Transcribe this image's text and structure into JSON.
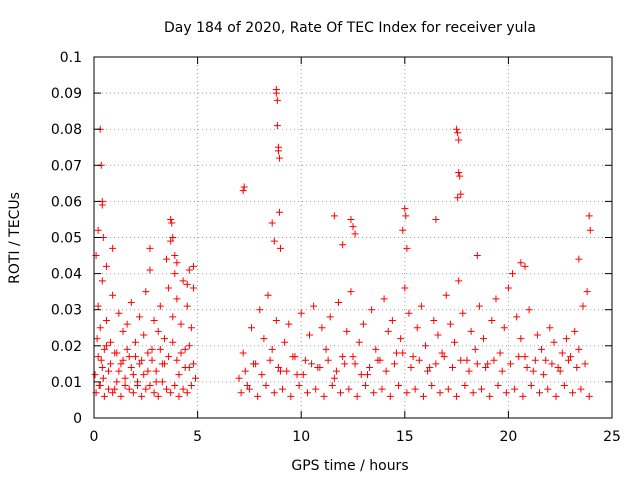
{
  "chart_data": {
    "type": "scatter",
    "title": "Day 184 of 2020, Rate Of TEC Index for receiver yula",
    "xlabel": "GPS time / hours",
    "ylabel": "ROTI / TECUs",
    "xlim": [
      0,
      25
    ],
    "ylim": [
      0,
      0.1
    ],
    "x_ticks": [
      0,
      5,
      10,
      15,
      20,
      25
    ],
    "x_tick_labels": [
      "0",
      "5",
      "10",
      "15",
      "20",
      "25"
    ],
    "y_ticks": [
      0,
      0.01,
      0.02,
      0.03,
      0.04,
      0.05,
      0.06,
      0.07,
      0.08,
      0.09,
      0.1
    ],
    "y_tick_labels": [
      "0",
      "0.01",
      "0.02",
      "0.03",
      "0.04",
      "0.05",
      "0.06",
      "0.07",
      "0.08",
      "0.09",
      "0.1"
    ],
    "grid": true,
    "marker": "+",
    "color": "#ff0000",
    "series": [
      {
        "x": [
          0.05,
          0.1,
          0.15,
          0.2,
          0.25,
          0.3,
          0.35,
          0.4,
          0.45,
          0.5,
          0.6,
          0.7,
          0.8,
          0.9,
          1.0,
          1.1,
          1.2,
          1.3,
          1.4,
          1.5,
          1.6,
          1.7,
          1.8,
          1.9,
          2.0,
          2.1,
          2.2,
          2.3,
          2.4,
          2.5,
          2.6,
          2.7,
          2.8,
          2.9,
          3.0,
          3.1,
          3.2,
          3.3,
          3.4,
          3.5,
          3.6,
          3.7,
          3.8,
          3.9,
          4.0,
          4.1,
          4.2,
          4.3,
          4.4,
          4.5,
          4.6,
          4.7,
          4.8,
          4.9,
          0.1,
          0.3,
          0.5,
          0.7,
          0.9,
          1.1,
          1.3,
          1.5,
          1.7,
          1.9,
          2.1,
          2.3,
          2.5,
          2.7,
          2.9,
          3.1,
          3.3,
          3.5,
          3.7,
          3.9,
          4.1,
          4.3,
          4.5,
          4.7,
          0.2,
          0.4,
          0.6,
          0.8,
          1.0,
          1.2,
          1.4,
          1.6,
          1.8,
          2.0,
          2.2,
          2.4,
          2.6,
          2.8,
          3.0,
          3.2,
          3.4,
          3.6,
          3.8,
          4.0,
          4.2,
          4.4,
          4.6,
          4.8,
          0.3,
          0.35,
          0.4,
          0.4,
          0.45,
          0.2,
          0.6,
          0.9,
          2.7,
          3.7,
          3.75,
          3.8,
          3.9,
          4.0,
          4.5,
          4.6,
          4.8,
          7.0,
          7.2,
          7.4,
          7.6,
          7.8,
          8.0,
          8.2,
          8.4,
          8.6,
          8.8,
          9.0,
          9.2,
          9.4,
          9.6,
          9.8,
          10.0,
          10.2,
          10.4,
          10.6,
          10.8,
          11.0,
          11.2,
          11.4,
          11.6,
          11.8,
          12.0,
          12.2,
          12.4,
          12.6,
          12.8,
          13.0,
          13.2,
          13.4,
          13.6,
          13.8,
          14.0,
          14.2,
          14.4,
          14.6,
          14.8,
          15.0,
          15.2,
          15.4,
          15.6,
          15.8,
          16.0,
          16.2,
          16.4,
          16.6,
          16.8,
          17.0,
          17.2,
          17.4,
          17.6,
          17.8,
          18.0,
          18.2,
          18.4,
          18.6,
          18.8,
          19.0,
          19.2,
          19.4,
          19.6,
          19.8,
          20.0,
          20.2,
          20.4,
          20.6,
          20.8,
          21.0,
          21.2,
          21.4,
          21.6,
          21.8,
          22.0,
          22.2,
          22.4,
          22.6,
          22.8,
          23.0,
          23.2,
          23.4,
          23.6,
          23.8,
          7.1,
          7.5,
          7.9,
          8.3,
          8.7,
          9.1,
          9.5,
          9.9,
          10.3,
          10.7,
          11.1,
          11.5,
          11.9,
          12.3,
          12.7,
          13.1,
          13.5,
          13.9,
          14.3,
          14.7,
          15.1,
          15.5,
          15.9,
          16.3,
          16.7,
          17.1,
          17.5,
          17.9,
          18.3,
          18.7,
          19.1,
          19.5,
          19.9,
          20.3,
          20.7,
          21.1,
          21.5,
          21.9,
          22.3,
          22.7,
          23.1,
          23.5,
          23.9,
          7.3,
          7.7,
          8.1,
          8.5,
          8.9,
          9.3,
          9.7,
          10.1,
          10.5,
          10.9,
          11.3,
          11.7,
          12.1,
          12.5,
          12.9,
          13.3,
          13.7,
          14.1,
          14.5,
          14.9,
          15.3,
          15.7,
          16.1,
          16.5,
          16.9,
          17.3,
          17.7,
          18.1,
          18.5,
          18.9,
          19.3,
          19.7,
          20.1,
          20.5,
          20.9,
          21.3,
          21.7,
          22.1,
          22.5,
          22.9,
          23.3,
          23.7,
          7.2,
          7.25,
          8.6,
          8.7,
          8.8,
          8.8,
          8.85,
          8.85,
          8.9,
          8.9,
          8.95,
          8.95,
          9.0,
          11.6,
          12.0,
          12.4,
          12.5,
          12.6,
          14.9,
          15.0,
          15.05,
          15.1,
          16.5,
          17.5,
          17.55,
          17.6,
          17.6,
          17.65,
          17.7,
          17.55,
          18.5,
          20.6,
          20.8,
          23.4,
          23.9,
          23.95
        ],
        "y": [
          0.012,
          0.045,
          0.022,
          0.031,
          0.009,
          0.025,
          0.016,
          0.038,
          0.011,
          0.019,
          0.027,
          0.013,
          0.021,
          0.034,
          0.008,
          0.018,
          0.029,
          0.015,
          0.024,
          0.011,
          0.026,
          0.017,
          0.032,
          0.012,
          0.021,
          0.009,
          0.028,
          0.016,
          0.023,
          0.035,
          0.013,
          0.041,
          0.019,
          0.027,
          0.01,
          0.024,
          0.031,
          0.015,
          0.022,
          0.044,
          0.036,
          0.049,
          0.028,
          0.04,
          0.033,
          0.012,
          0.026,
          0.038,
          0.019,
          0.031,
          0.014,
          0.025,
          0.036,
          0.011,
          0.007,
          0.009,
          0.006,
          0.008,
          0.007,
          0.01,
          0.006,
          0.009,
          0.008,
          0.007,
          0.01,
          0.006,
          0.008,
          0.009,
          0.007,
          0.006,
          0.01,
          0.008,
          0.007,
          0.009,
          0.006,
          0.008,
          0.007,
          0.009,
          0.017,
          0.014,
          0.02,
          0.015,
          0.018,
          0.013,
          0.016,
          0.019,
          0.014,
          0.017,
          0.015,
          0.012,
          0.018,
          0.016,
          0.013,
          0.019,
          0.015,
          0.017,
          0.021,
          0.016,
          0.018,
          0.014,
          0.02,
          0.015,
          0.08,
          0.07,
          0.06,
          0.059,
          0.05,
          0.052,
          0.042,
          0.047,
          0.047,
          0.055,
          0.054,
          0.05,
          0.045,
          0.043,
          0.037,
          0.041,
          0.042,
          0.011,
          0.018,
          0.009,
          0.025,
          0.015,
          0.03,
          0.022,
          0.034,
          0.019,
          0.027,
          0.013,
          0.021,
          0.026,
          0.017,
          0.012,
          0.029,
          0.016,
          0.023,
          0.031,
          0.014,
          0.025,
          0.019,
          0.028,
          0.011,
          0.032,
          0.017,
          0.024,
          0.035,
          0.015,
          0.021,
          0.026,
          0.012,
          0.03,
          0.019,
          0.016,
          0.033,
          0.024,
          0.027,
          0.018,
          0.022,
          0.036,
          0.029,
          0.017,
          0.025,
          0.031,
          0.02,
          0.014,
          0.027,
          0.023,
          0.018,
          0.034,
          0.026,
          0.021,
          0.038,
          0.029,
          0.016,
          0.024,
          0.019,
          0.031,
          0.022,
          0.015,
          0.027,
          0.033,
          0.018,
          0.025,
          0.036,
          0.04,
          0.028,
          0.022,
          0.017,
          0.03,
          0.013,
          0.023,
          0.019,
          0.016,
          0.025,
          0.021,
          0.014,
          0.018,
          0.022,
          0.017,
          0.024,
          0.019,
          0.031,
          0.035,
          0.007,
          0.008,
          0.006,
          0.009,
          0.007,
          0.008,
          0.006,
          0.009,
          0.007,
          0.008,
          0.006,
          0.009,
          0.007,
          0.008,
          0.006,
          0.009,
          0.007,
          0.008,
          0.006,
          0.009,
          0.007,
          0.008,
          0.006,
          0.009,
          0.007,
          0.008,
          0.006,
          0.009,
          0.007,
          0.008,
          0.006,
          0.009,
          0.007,
          0.008,
          0.006,
          0.009,
          0.007,
          0.008,
          0.006,
          0.009,
          0.007,
          0.008,
          0.006,
          0.013,
          0.015,
          0.012,
          0.016,
          0.014,
          0.013,
          0.017,
          0.012,
          0.015,
          0.014,
          0.016,
          0.013,
          0.015,
          0.017,
          0.012,
          0.014,
          0.016,
          0.013,
          0.015,
          0.018,
          0.014,
          0.016,
          0.013,
          0.015,
          0.017,
          0.014,
          0.016,
          0.013,
          0.015,
          0.014,
          0.016,
          0.013,
          0.015,
          0.017,
          0.014,
          0.016,
          0.012,
          0.015,
          0.013,
          0.016,
          0.014,
          0.015,
          0.063,
          0.064,
          0.054,
          0.049,
          0.091,
          0.09,
          0.088,
          0.081,
          0.075,
          0.074,
          0.072,
          0.057,
          0.047,
          0.056,
          0.048,
          0.055,
          0.053,
          0.051,
          0.052,
          0.058,
          0.056,
          0.047,
          0.055,
          0.08,
          0.079,
          0.077,
          0.068,
          0.067,
          0.062,
          0.061,
          0.045,
          0.043,
          0.042,
          0.044,
          0.056,
          0.052
        ]
      }
    ]
  }
}
